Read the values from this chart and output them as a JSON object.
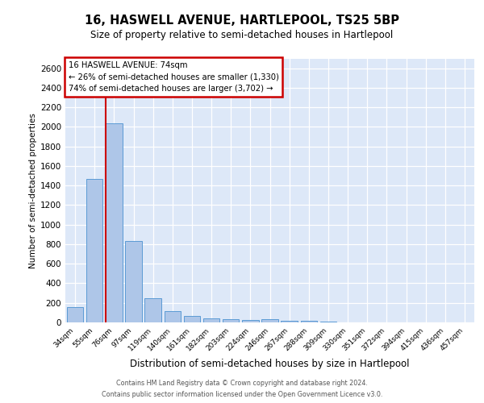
{
  "title_line1": "16, HASWELL AVENUE, HARTLEPOOL, TS25 5BP",
  "title_line2": "Size of property relative to semi-detached houses in Hartlepool",
  "xlabel": "Distribution of semi-detached houses by size in Hartlepool",
  "ylabel": "Number of semi-detached properties",
  "categories": [
    "34sqm",
    "55sqm",
    "76sqm",
    "97sqm",
    "119sqm",
    "140sqm",
    "161sqm",
    "182sqm",
    "203sqm",
    "224sqm",
    "246sqm",
    "267sqm",
    "288sqm",
    "309sqm",
    "330sqm",
    "351sqm",
    "372sqm",
    "394sqm",
    "415sqm",
    "436sqm",
    "457sqm"
  ],
  "values": [
    155,
    1470,
    2040,
    830,
    250,
    115,
    68,
    38,
    32,
    28,
    30,
    18,
    14,
    8,
    0,
    0,
    0,
    0,
    0,
    0,
    0
  ],
  "bar_color": "#aec6e8",
  "bar_edge_color": "#5b9bd5",
  "background_color": "#dde8f8",
  "grid_color": "#ffffff",
  "vline_color": "#cc0000",
  "annotation_title": "16 HASWELL AVENUE: 74sqm",
  "annotation_line1": "← 26% of semi-detached houses are smaller (1,330)",
  "annotation_line2": "74% of semi-detached houses are larger (3,702) →",
  "annotation_box_color": "#ffffff",
  "annotation_box_edge": "#cc0000",
  "footer_line1": "Contains HM Land Registry data © Crown copyright and database right 2024.",
  "footer_line2": "Contains public sector information licensed under the Open Government Licence v3.0.",
  "ylim": [
    0,
    2700
  ],
  "yticks": [
    0,
    200,
    400,
    600,
    800,
    1000,
    1200,
    1400,
    1600,
    1800,
    2000,
    2200,
    2400,
    2600
  ]
}
